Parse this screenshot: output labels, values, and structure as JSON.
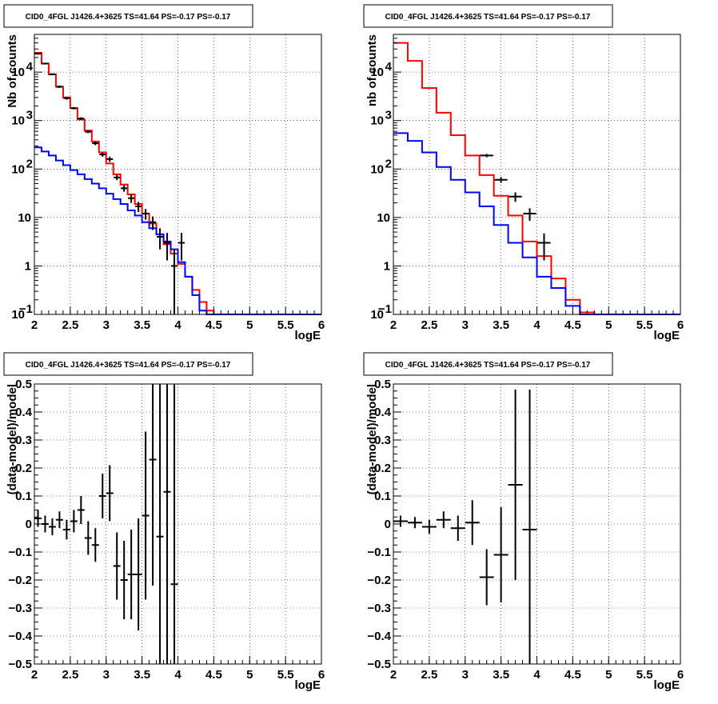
{
  "colors": {
    "model_total": "#ff0000",
    "model_bkg": "#0000ff",
    "data": "#000000"
  },
  "chart_data": [
    {
      "type": "line",
      "title": "CID0_4FGL J1426.4+3625 TS=41.64 PS=-0.17 PS=-0.17",
      "xlabel": "logE",
      "ylabel": "Nb of counts",
      "xlim": [
        2,
        6
      ],
      "ylim": [
        0.1,
        60000
      ],
      "yscale": "log",
      "grid": true,
      "xticks": [
        "2",
        "2.5",
        "3",
        "3.5",
        "4",
        "4.5",
        "5",
        "5.5",
        "6"
      ],
      "yticks": [
        {
          "v": 0.1,
          "label": "10",
          "sup": "−1"
        },
        {
          "v": 1,
          "label": "1",
          "sup": ""
        },
        {
          "v": 10,
          "label": "10",
          "sup": ""
        },
        {
          "v": 100,
          "label": "10",
          "sup": "2"
        },
        {
          "v": 1000,
          "label": "10",
          "sup": "3"
        },
        {
          "v": 10000,
          "label": "10",
          "sup": "4"
        }
      ],
      "bin_edges": [
        2.0,
        2.1,
        2.2,
        2.3,
        2.4,
        2.5,
        2.6,
        2.7,
        2.8,
        2.9,
        3.0,
        3.1,
        3.2,
        3.3,
        3.4,
        3.5,
        3.6,
        3.7,
        3.8,
        3.9,
        4.0,
        4.1,
        4.2,
        4.3,
        4.4,
        4.5,
        4.6,
        4.7,
        4.8,
        4.9,
        5.0,
        5.1,
        5.2,
        5.3,
        5.4,
        5.5,
        5.6,
        5.7,
        5.8,
        5.9,
        6.0
      ],
      "series": [
        {
          "name": "",
          "style": "step",
          "color": "#ff0000",
          "values": [
            25000,
            15000,
            9000,
            5000,
            3000,
            1800,
            1050,
            620,
            370,
            220,
            130,
            78,
            48,
            30,
            19,
            12,
            7.5,
            4.5,
            2.8,
            1.8,
            1.1,
            0.6,
            0.32,
            0.18,
            0.12,
            0.1,
            0.1,
            0.1,
            0.1,
            0.1,
            0.1,
            0.1,
            0.1,
            0.1,
            0.1,
            0.1,
            0.1,
            0.1,
            0.1,
            0.1
          ]
        },
        {
          "name": "",
          "style": "step",
          "color": "#0000ff",
          "values": [
            280,
            230,
            190,
            150,
            120,
            95,
            78,
            62,
            50,
            40,
            31,
            24,
            19,
            14,
            11,
            8,
            6,
            4.5,
            3.2,
            2.2,
            1.2,
            0.6,
            0.25,
            0.12,
            0.1,
            0.1,
            0.1,
            0.1,
            0.1,
            0.1,
            0.1,
            0.1,
            0.1,
            0.1,
            0.1,
            0.1,
            0.1,
            0.1,
            0.1,
            0.1
          ]
        },
        {
          "name": "",
          "style": "errorbar",
          "color": "#000000",
          "points": [
            {
              "x": 2.05,
              "y": 24000,
              "lo": 23000,
              "hi": 25000
            },
            {
              "x": 2.15,
              "y": 15000,
              "lo": 14400,
              "hi": 15600
            },
            {
              "x": 2.25,
              "y": 9000,
              "lo": 8600,
              "hi": 9400
            },
            {
              "x": 2.35,
              "y": 5000,
              "lo": 4700,
              "hi": 5300
            },
            {
              "x": 2.45,
              "y": 2900,
              "lo": 2700,
              "hi": 3100
            },
            {
              "x": 2.55,
              "y": 1800,
              "lo": 1700,
              "hi": 1900
            },
            {
              "x": 2.65,
              "y": 1100,
              "lo": 1030,
              "hi": 1170
            },
            {
              "x": 2.75,
              "y": 590,
              "lo": 550,
              "hi": 630
            },
            {
              "x": 2.85,
              "y": 340,
              "lo": 310,
              "hi": 370
            },
            {
              "x": 2.95,
              "y": 200,
              "lo": 180,
              "hi": 220
            },
            {
              "x": 3.05,
              "y": 160,
              "lo": 140,
              "hi": 180
            },
            {
              "x": 3.15,
              "y": 67,
              "lo": 59,
              "hi": 75
            },
            {
              "x": 3.25,
              "y": 40,
              "lo": 34,
              "hi": 46
            },
            {
              "x": 3.35,
              "y": 25,
              "lo": 20,
              "hi": 30
            },
            {
              "x": 3.45,
              "y": 17,
              "lo": 13,
              "hi": 21
            },
            {
              "x": 3.55,
              "y": 12,
              "lo": 9,
              "hi": 15
            },
            {
              "x": 3.65,
              "y": 8,
              "lo": 5.5,
              "hi": 10.5
            },
            {
              "x": 3.75,
              "y": 4,
              "lo": 2.2,
              "hi": 6
            },
            {
              "x": 3.85,
              "y": 3,
              "lo": 1.3,
              "hi": 4.8
            },
            {
              "x": 3.95,
              "y": 1,
              "lo": 0.1,
              "hi": 2.2
            },
            {
              "x": 4.05,
              "y": 3,
              "lo": 1.3,
              "hi": 4.8
            }
          ]
        }
      ]
    },
    {
      "type": "line",
      "title": "CID0_4FGL J1426.4+3625 TS=41.64 PS=-0.17 PS=-0.17",
      "xlabel": "logE",
      "ylabel": "nb of counts",
      "xlim": [
        2,
        6
      ],
      "ylim": [
        0.1,
        60000
      ],
      "yscale": "log",
      "grid": true,
      "xticks": [
        "2",
        "2.5",
        "3",
        "3.5",
        "4",
        "4.5",
        "5",
        "5.5",
        "6"
      ],
      "yticks": [
        {
          "v": 0.1,
          "label": "10",
          "sup": "−1"
        },
        {
          "v": 1,
          "label": "1",
          "sup": ""
        },
        {
          "v": 10,
          "label": "10",
          "sup": ""
        },
        {
          "v": 100,
          "label": "10",
          "sup": "2"
        },
        {
          "v": 1000,
          "label": "10",
          "sup": "3"
        },
        {
          "v": 10000,
          "label": "10",
          "sup": "4"
        }
      ],
      "bin_edges": [
        2.0,
        2.2,
        2.4,
        2.6,
        2.8,
        3.0,
        3.2,
        3.4,
        3.6,
        3.8,
        4.0,
        4.2,
        4.4,
        4.6,
        4.8,
        5.0,
        5.2,
        5.4,
        5.6,
        5.8,
        6.0
      ],
      "series": [
        {
          "name": "",
          "style": "step",
          "color": "#ff0000",
          "values": [
            40000,
            17000,
            4700,
            1450,
            500,
            190,
            75,
            28,
            11,
            3.2,
            1.6,
            0.55,
            0.2,
            0.11,
            0.1,
            0.1,
            0.1,
            0.1,
            0.1,
            0.1
          ]
        },
        {
          "name": "",
          "style": "step",
          "color": "#0000ff",
          "values": [
            550,
            380,
            220,
            110,
            60,
            33,
            17,
            7,
            3,
            1.5,
            0.6,
            0.35,
            0.15,
            0.1,
            0.1,
            0.1,
            0.1,
            0.1,
            0.1,
            0.1
          ]
        },
        {
          "name": "",
          "style": "errorbar",
          "color": "#000000",
          "points": [
            {
              "x": 3.3,
              "y": 190,
              "lo": 175,
              "hi": 205
            },
            {
              "x": 3.5,
              "y": 60,
              "lo": 52,
              "hi": 68
            },
            {
              "x": 3.7,
              "y": 27,
              "lo": 21,
              "hi": 33
            },
            {
              "x": 3.9,
              "y": 12,
              "lo": 8.5,
              "hi": 15.5
            },
            {
              "x": 4.1,
              "y": 3,
              "lo": 1.3,
              "hi": 4.7
            }
          ]
        }
      ]
    },
    {
      "type": "scatter",
      "title": "CID0_4FGL J1426.4+3625 TS=41.64 PS=-0.17 PS=-0.17",
      "xlabel": "logE",
      "ylabel": "(data-model)/model",
      "xlim": [
        2,
        6
      ],
      "ylim": [
        -0.5,
        0.5
      ],
      "grid": true,
      "xticks": [
        "2",
        "2.5",
        "3",
        "3.5",
        "4",
        "4.5",
        "5",
        "5.5",
        "6"
      ],
      "yticks": [
        "−0.5",
        "−0.4",
        "−0.3",
        "−0.2",
        "−0.1",
        "0",
        "0.1",
        "0.2",
        "0.3",
        "0.4",
        "0.5"
      ],
      "points": [
        {
          "x": 2.05,
          "y": 0.02,
          "err": 0.03
        },
        {
          "x": 2.15,
          "y": 0.0,
          "err": 0.03
        },
        {
          "x": 2.25,
          "y": -0.01,
          "err": 0.03
        },
        {
          "x": 2.35,
          "y": 0.015,
          "err": 0.03
        },
        {
          "x": 2.45,
          "y": -0.02,
          "err": 0.035
        },
        {
          "x": 2.55,
          "y": 0.01,
          "err": 0.04
        },
        {
          "x": 2.65,
          "y": 0.05,
          "err": 0.05
        },
        {
          "x": 2.75,
          "y": -0.05,
          "err": 0.06
        },
        {
          "x": 2.85,
          "y": -0.075,
          "err": 0.06
        },
        {
          "x": 2.95,
          "y": 0.1,
          "err": 0.08
        },
        {
          "x": 3.05,
          "y": 0.11,
          "err": 0.1
        },
        {
          "x": 3.15,
          "y": -0.15,
          "err": 0.12
        },
        {
          "x": 3.25,
          "y": -0.2,
          "err": 0.14
        },
        {
          "x": 3.35,
          "y": -0.18,
          "err": 0.16
        },
        {
          "x": 3.45,
          "y": -0.18,
          "err": 0.2
        },
        {
          "x": 3.55,
          "y": 0.03,
          "err": 0.3
        },
        {
          "x": 3.65,
          "y": 0.23,
          "err": 0.45
        },
        {
          "x": 3.75,
          "y": -0.045,
          "err": 0.6
        },
        {
          "x": 3.85,
          "y": 0.115,
          "err": 0.7
        },
        {
          "x": 3.95,
          "y": -0.215,
          "err": 0.8
        }
      ]
    },
    {
      "type": "scatter",
      "title": "CID0_4FGL J1426.4+3625 TS=41.64 PS=-0.17 PS=-0.17",
      "xlabel": "logE",
      "ylabel": "(data-model)/model",
      "xlim": [
        2,
        6
      ],
      "ylim": [
        -0.5,
        0.5
      ],
      "grid": true,
      "xticks": [
        "2",
        "2.5",
        "3",
        "3.5",
        "4",
        "4.5",
        "5",
        "5.5",
        "6"
      ],
      "yticks": [
        "−0.5",
        "−0.4",
        "−0.3",
        "−0.2",
        "−0.1",
        "0",
        "0.1",
        "0.2",
        "0.3",
        "0.4",
        "0.5"
      ],
      "points": [
        {
          "x": 2.1,
          "y": 0.01,
          "err": 0.02
        },
        {
          "x": 2.3,
          "y": 0.005,
          "err": 0.02
        },
        {
          "x": 2.5,
          "y": -0.01,
          "err": 0.025
        },
        {
          "x": 2.7,
          "y": 0.015,
          "err": 0.03
        },
        {
          "x": 2.9,
          "y": -0.015,
          "err": 0.045
        },
        {
          "x": 3.1,
          "y": 0.005,
          "err": 0.08
        },
        {
          "x": 3.3,
          "y": -0.19,
          "err": 0.1
        },
        {
          "x": 3.5,
          "y": -0.11,
          "err": 0.17
        },
        {
          "x": 3.7,
          "y": 0.14,
          "err": 0.34
        },
        {
          "x": 3.9,
          "y": -0.02,
          "err": 0.5
        }
      ]
    }
  ]
}
